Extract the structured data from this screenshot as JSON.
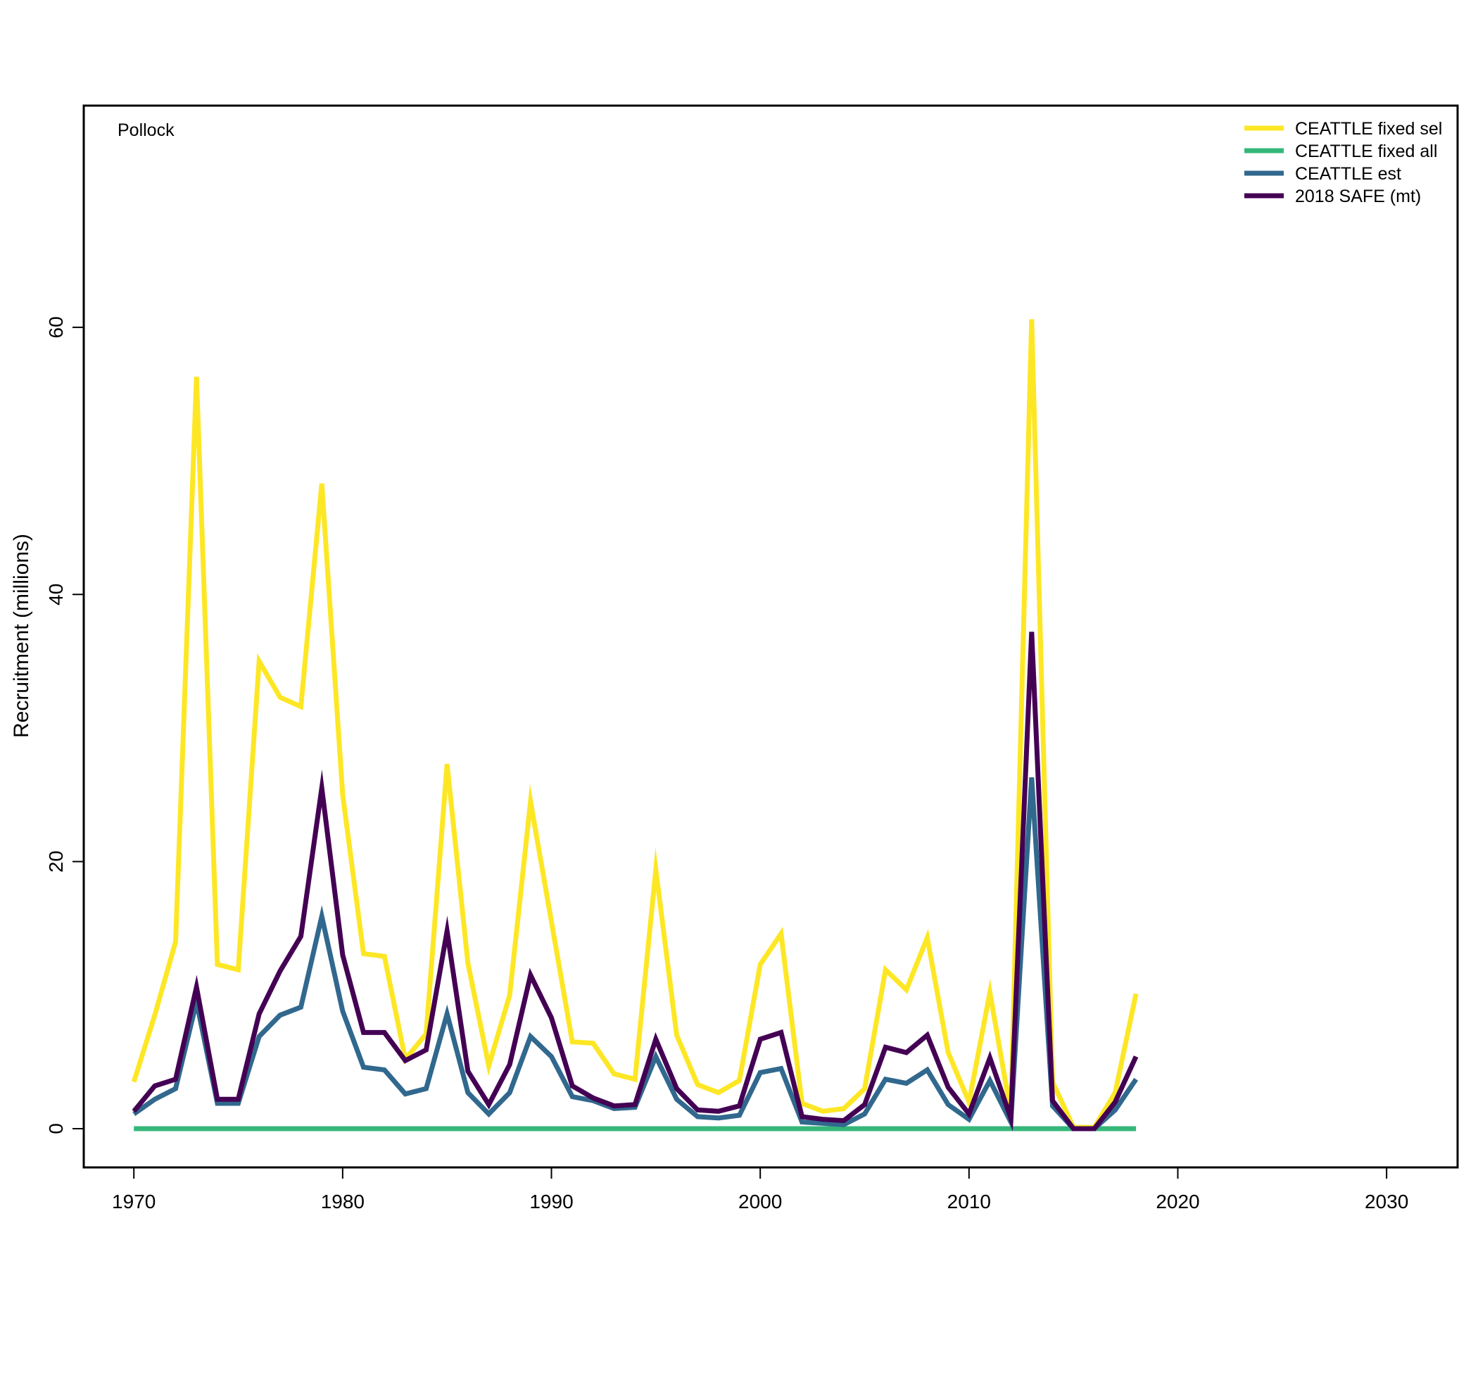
{
  "chart_data": {
    "type": "line",
    "panel_label": "Pollock",
    "ylabel": "Recruitment (millions)",
    "xlabel": "",
    "xlim": [
      1967.6,
      2033.4
    ],
    "ylim": [
      -2.9,
      76.6
    ],
    "xticks": [
      1970,
      1980,
      1990,
      2000,
      2010,
      2020,
      2030
    ],
    "yticks": [
      0,
      20,
      40,
      60
    ],
    "grid": false,
    "legend_position": "top-right",
    "x": [
      1970,
      1971,
      1972,
      1973,
      1974,
      1975,
      1976,
      1977,
      1978,
      1979,
      1980,
      1981,
      1982,
      1983,
      1984,
      1985,
      1986,
      1987,
      1988,
      1989,
      1990,
      1991,
      1992,
      1993,
      1994,
      1995,
      1996,
      1997,
      1998,
      1999,
      2000,
      2001,
      2002,
      2003,
      2004,
      2005,
      2006,
      2007,
      2008,
      2009,
      2010,
      2011,
      2012,
      2013,
      2014,
      2015,
      2016,
      2017,
      2018
    ],
    "series": [
      {
        "name": "CEATTLE fixed sel",
        "color": "#FDE725",
        "values": [
          3.5,
          8.5,
          14.0,
          56.3,
          12.3,
          11.9,
          35.0,
          32.3,
          31.6,
          48.3,
          25.0,
          13.1,
          12.9,
          5.2,
          7.1,
          27.3,
          12.4,
          4.7,
          10.0,
          24.5,
          15.5,
          6.5,
          6.4,
          4.1,
          3.7,
          19.4,
          7.0,
          3.3,
          2.7,
          3.6,
          12.3,
          14.6,
          1.9,
          1.3,
          1.5,
          3.0,
          11.9,
          10.4,
          14.3,
          5.7,
          2.0,
          10.2,
          1.2,
          60.6,
          3.5,
          0.1,
          0.1,
          2.7,
          10.1
        ]
      },
      {
        "name": "CEATTLE fixed all",
        "color": "#35B779",
        "values": [
          0,
          0,
          0,
          0,
          0,
          0,
          0,
          0,
          0,
          0,
          0,
          0,
          0,
          0,
          0,
          0,
          0,
          0,
          0,
          0,
          0,
          0,
          0,
          0,
          0,
          0,
          0,
          0,
          0,
          0,
          0,
          0,
          0,
          0,
          0,
          0,
          0,
          0,
          0,
          0,
          0,
          0,
          0,
          0,
          0,
          0,
          0,
          0,
          0
        ]
      },
      {
        "name": "CEATTLE est",
        "color": "#31688E",
        "values": [
          1.1,
          2.2,
          3.0,
          9.5,
          1.9,
          1.9,
          6.9,
          8.5,
          9.1,
          15.9,
          8.8,
          4.6,
          4.4,
          2.6,
          3.0,
          8.6,
          2.7,
          1.1,
          2.7,
          6.9,
          5.4,
          2.4,
          2.1,
          1.5,
          1.6,
          5.4,
          2.2,
          0.9,
          0.8,
          1.0,
          4.2,
          4.5,
          0.5,
          0.4,
          0.3,
          1.1,
          3.7,
          3.4,
          4.4,
          1.8,
          0.7,
          3.6,
          0.5,
          26.3,
          1.7,
          0.0,
          0.0,
          1.4,
          3.7
        ]
      },
      {
        "name": "2018 SAFE (mt)",
        "color": "#440154",
        "values": [
          1.3,
          3.2,
          3.7,
          10.6,
          2.2,
          2.2,
          8.6,
          11.8,
          14.4,
          25.5,
          13.0,
          7.2,
          7.2,
          5.1,
          5.9,
          14.8,
          4.3,
          1.8,
          4.8,
          11.5,
          8.3,
          3.2,
          2.3,
          1.7,
          1.8,
          6.7,
          3.0,
          1.4,
          1.3,
          1.7,
          6.7,
          7.2,
          0.9,
          0.7,
          0.6,
          1.8,
          6.1,
          5.7,
          7.0,
          3.1,
          1.1,
          5.3,
          0.8,
          37.2,
          2.1,
          0.0,
          0.0,
          2.0,
          5.4
        ]
      }
    ]
  }
}
